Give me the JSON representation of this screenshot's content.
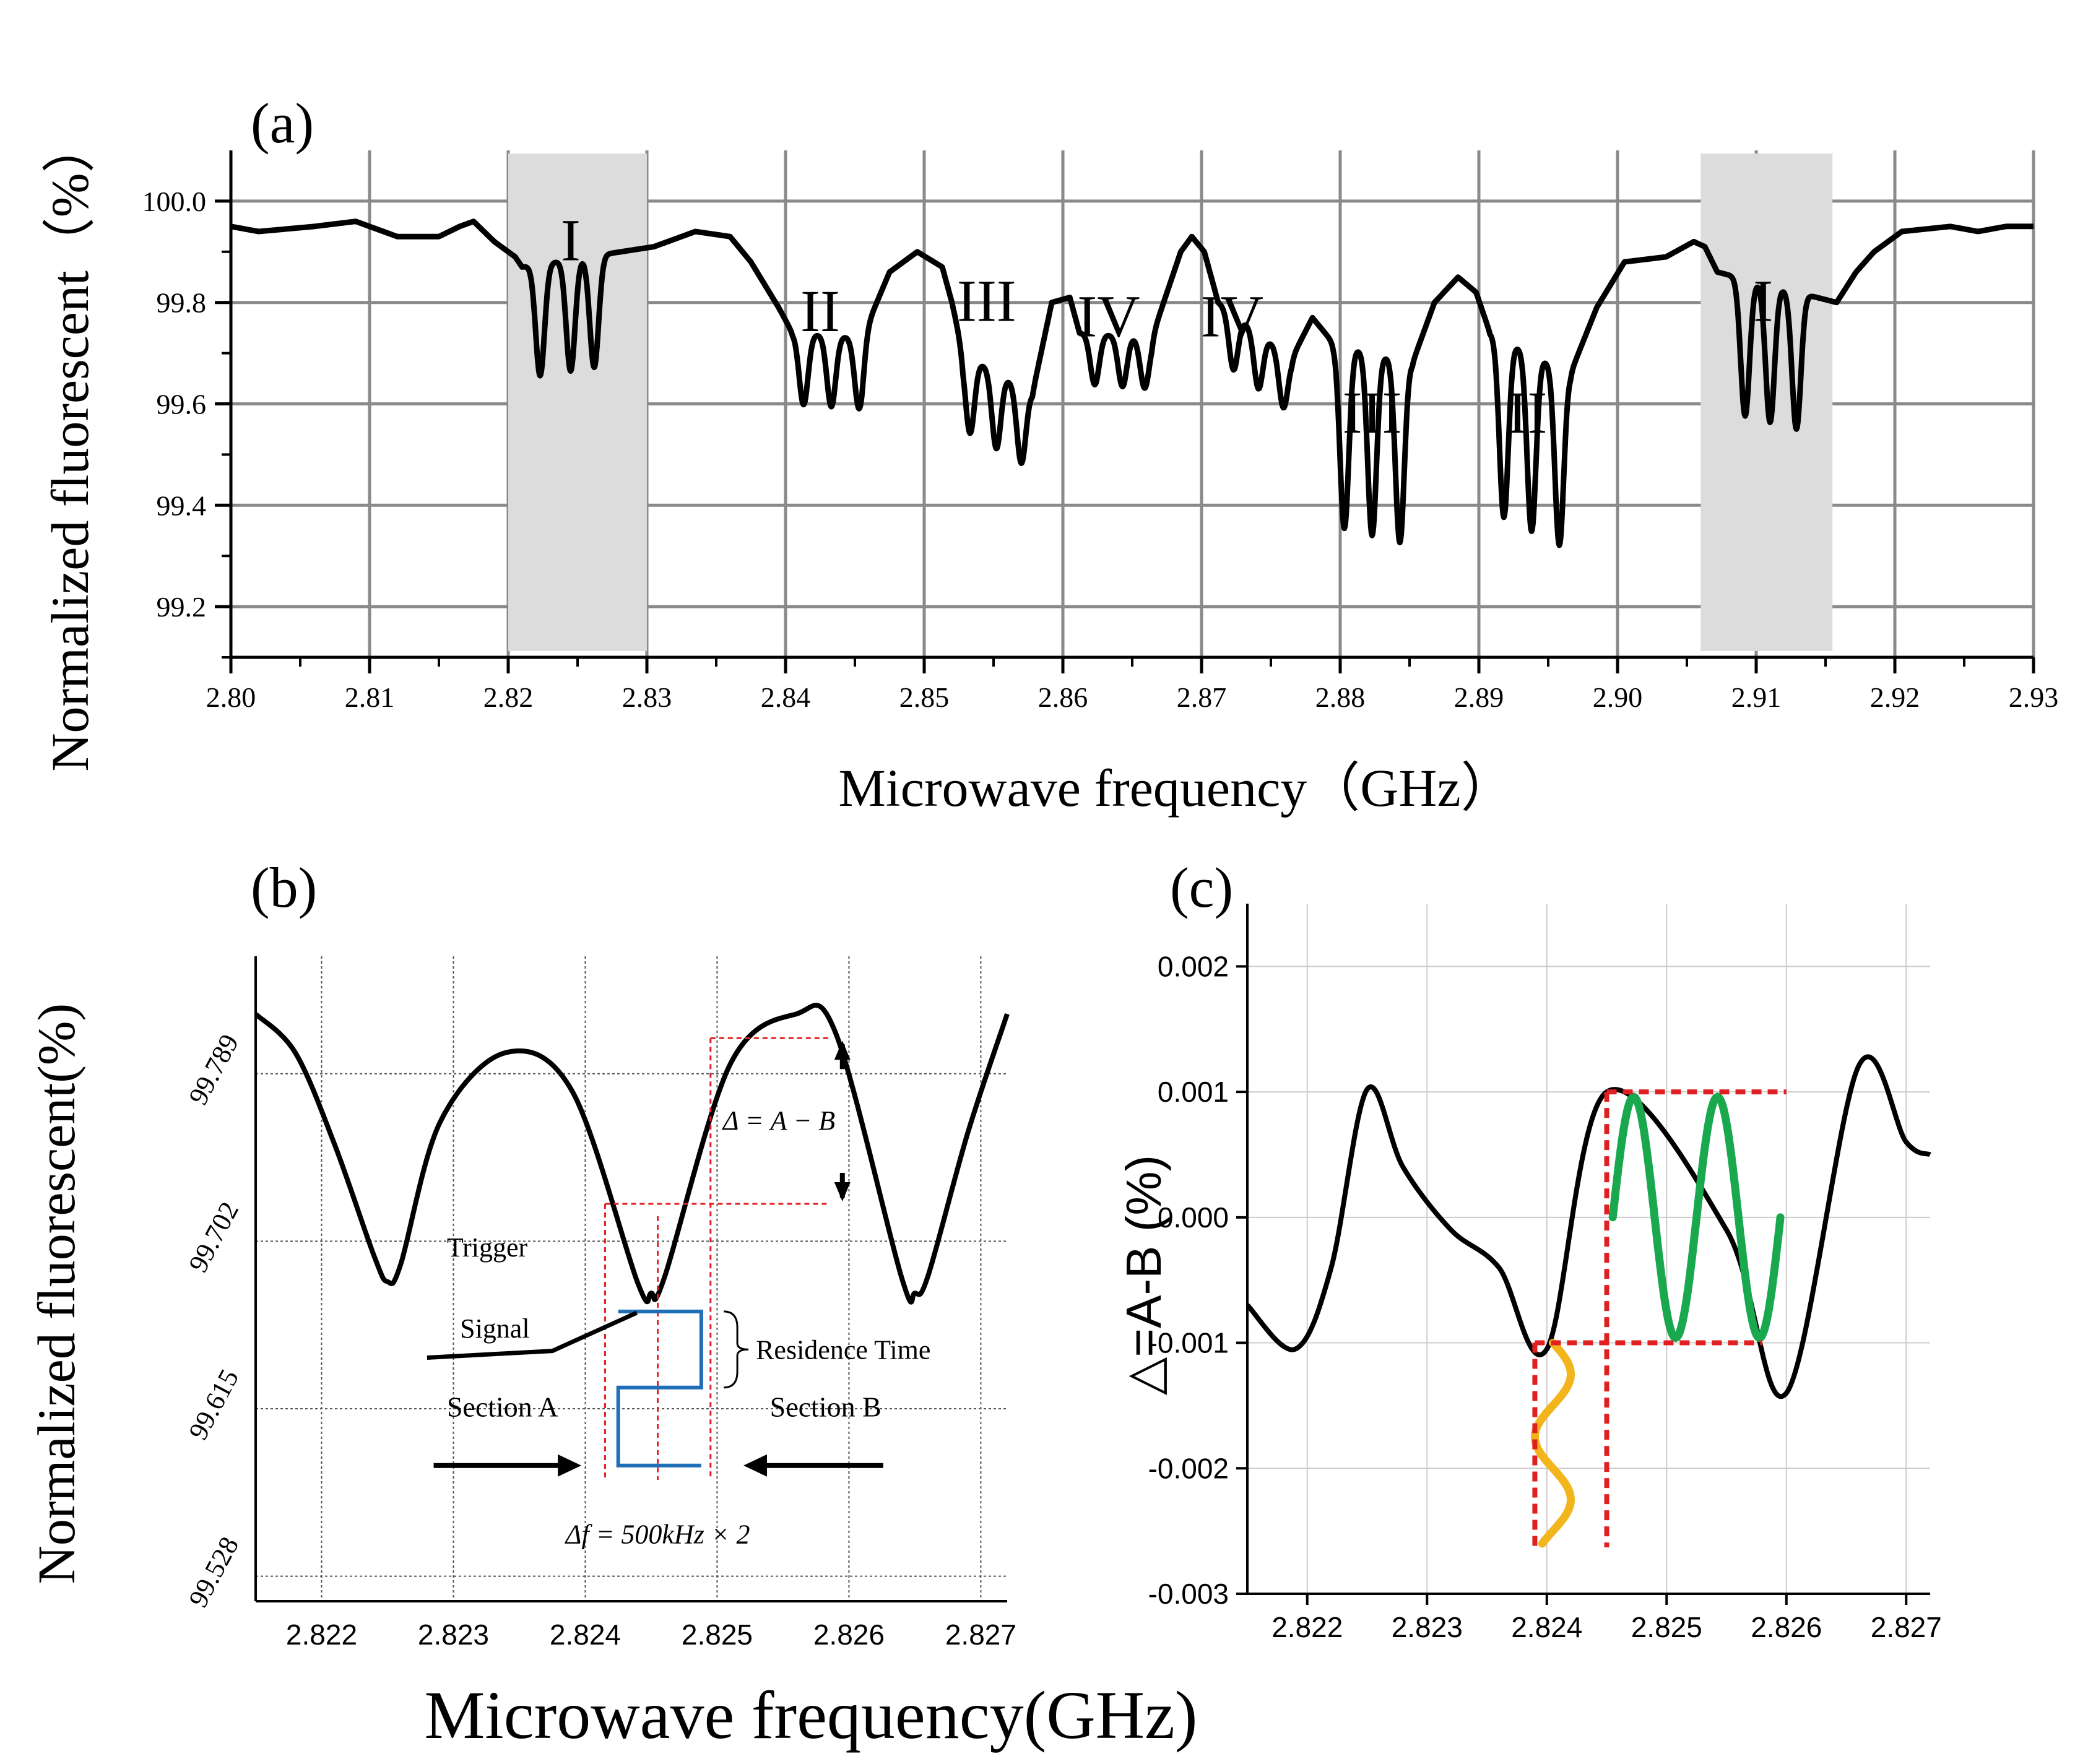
{
  "figure": {
    "panel_a_label": "(a)",
    "panel_b_label": "(b)",
    "panel_c_label": "(c)",
    "shared_xlabel": "Microwave frequency(GHz)"
  },
  "chart_data": [
    {
      "id": "a",
      "type": "line",
      "title": "(a)",
      "xlabel": "Microwave frequency（GHz）",
      "ylabel": "Normalized fluorescent（%）",
      "xlim": [
        2.8,
        2.93
      ],
      "ylim": [
        99.1,
        100.1
      ],
      "xticks": [
        "2.80",
        "2.81",
        "2.82",
        "2.83",
        "2.84",
        "2.85",
        "2.86",
        "2.87",
        "2.88",
        "2.89",
        "2.90",
        "2.91",
        "2.92",
        "2.93"
      ],
      "yticks": [
        "99.2",
        "99.4",
        "99.6",
        "99.8",
        "100.0"
      ],
      "grid": true,
      "shaded_regions": [
        {
          "x0": 2.82,
          "x1": 2.83,
          "label": "I"
        },
        {
          "x0": 2.906,
          "x1": 2.9155,
          "label": "I"
        }
      ],
      "annotations": [
        {
          "text": "I",
          "x": 2.8245,
          "y": 99.92
        },
        {
          "text": "II",
          "x": 2.8425,
          "y": 99.78
        },
        {
          "text": "III",
          "x": 2.8545,
          "y": 99.8
        },
        {
          "text": "IV",
          "x": 2.8633,
          "y": 99.77
        },
        {
          "text": "IV",
          "x": 2.8722,
          "y": 99.77
        },
        {
          "text": "III",
          "x": 2.8823,
          "y": 99.58
        },
        {
          "text": "II",
          "x": 2.8935,
          "y": 99.58
        },
        {
          "text": "I",
          "x": 2.9105,
          "y": 99.8
        }
      ],
      "baseline": [
        [
          2.8,
          99.95
        ],
        [
          2.802,
          99.94
        ],
        [
          2.806,
          99.95
        ],
        [
          2.809,
          99.96
        ],
        [
          2.812,
          99.93
        ],
        [
          2.815,
          99.93
        ],
        [
          2.8165,
          99.95
        ],
        [
          2.8175,
          99.96
        ],
        [
          2.819,
          99.92
        ],
        [
          2.8205,
          99.89
        ],
        [
          2.821,
          99.87
        ],
        [
          2.8305,
          99.91
        ],
        [
          2.8335,
          99.94
        ],
        [
          2.836,
          99.93
        ],
        [
          2.8375,
          99.88
        ],
        [
          2.8395,
          99.79
        ],
        [
          2.8405,
          99.74
        ],
        [
          2.8455,
          99.73
        ],
        [
          2.8475,
          99.86
        ],
        [
          2.8495,
          99.9
        ],
        [
          2.8513,
          99.87
        ],
        [
          2.852,
          99.8
        ],
        [
          2.8528,
          99.7
        ],
        [
          2.8578,
          99.62
        ],
        [
          2.8592,
          99.8
        ],
        [
          2.8605,
          99.81
        ],
        [
          2.8612,
          99.74
        ],
        [
          2.8664,
          99.73
        ],
        [
          2.8685,
          99.9
        ],
        [
          2.8693,
          99.93
        ],
        [
          2.8702,
          99.9
        ],
        [
          2.8712,
          99.8
        ],
        [
          2.8765,
          99.69
        ],
        [
          2.878,
          99.77
        ],
        [
          2.8795,
          99.72
        ],
        [
          2.8852,
          99.68
        ],
        [
          2.8868,
          99.8
        ],
        [
          2.8885,
          99.85
        ],
        [
          2.8898,
          99.82
        ],
        [
          2.8908,
          99.74
        ],
        [
          2.8966,
          99.66
        ],
        [
          2.8985,
          99.79
        ],
        [
          2.9005,
          99.88
        ],
        [
          2.9035,
          99.89
        ],
        [
          2.9055,
          99.92
        ],
        [
          2.9063,
          99.91
        ],
        [
          2.9072,
          99.86
        ],
        [
          2.9158,
          99.8
        ],
        [
          2.9172,
          99.86
        ],
        [
          2.9185,
          99.9
        ],
        [
          2.9205,
          99.94
        ],
        [
          2.924,
          99.95
        ],
        [
          2.926,
          99.94
        ],
        [
          2.928,
          99.95
        ],
        [
          2.93,
          99.95
        ]
      ],
      "dips": [
        {
          "x": 2.8223,
          "depth": 0.22,
          "w": 0.00045
        },
        {
          "x": 2.8245,
          "depth": 0.22,
          "w": 0.00045
        },
        {
          "x": 2.8262,
          "depth": 0.22,
          "w": 0.00045
        },
        {
          "x": 2.8413,
          "depth": 0.14,
          "w": 0.00045
        },
        {
          "x": 2.8433,
          "depth": 0.14,
          "w": 0.00045
        },
        {
          "x": 2.8453,
          "depth": 0.14,
          "w": 0.00045
        },
        {
          "x": 2.8533,
          "depth": 0.15,
          "w": 0.00045
        },
        {
          "x": 2.8552,
          "depth": 0.15,
          "w": 0.00045
        },
        {
          "x": 2.857,
          "depth": 0.15,
          "w": 0.00045
        },
        {
          "x": 2.8623,
          "depth": 0.1,
          "w": 0.00045
        },
        {
          "x": 2.8643,
          "depth": 0.1,
          "w": 0.00045
        },
        {
          "x": 2.8659,
          "depth": 0.1,
          "w": 0.00045
        },
        {
          "x": 2.8723,
          "depth": 0.11,
          "w": 0.00045
        },
        {
          "x": 2.8741,
          "depth": 0.11,
          "w": 0.00045
        },
        {
          "x": 2.8759,
          "depth": 0.11,
          "w": 0.00045
        },
        {
          "x": 2.8803,
          "depth": 0.36,
          "w": 0.00045
        },
        {
          "x": 2.8823,
          "depth": 0.36,
          "w": 0.00045
        },
        {
          "x": 2.8843,
          "depth": 0.36,
          "w": 0.00045
        },
        {
          "x": 2.8918,
          "depth": 0.35,
          "w": 0.00045
        },
        {
          "x": 2.8938,
          "depth": 0.35,
          "w": 0.00045
        },
        {
          "x": 2.8958,
          "depth": 0.35,
          "w": 0.00045
        },
        {
          "x": 2.9092,
          "depth": 0.27,
          "w": 0.00045
        },
        {
          "x": 2.911,
          "depth": 0.27,
          "w": 0.00045
        },
        {
          "x": 2.9129,
          "depth": 0.27,
          "w": 0.00045
        }
      ]
    },
    {
      "id": "b",
      "type": "line",
      "title": "(b)",
      "ylabel": "Normalized fluorescent(%)",
      "xlim": [
        2.8215,
        2.8272
      ],
      "ylim": [
        99.515,
        99.85
      ],
      "xticks": [
        "2.822",
        "2.823",
        "2.824",
        "2.825",
        "2.826",
        "2.827"
      ],
      "yticks": [
        "99.528",
        "99.615",
        "99.702",
        "99.789"
      ],
      "grid": true,
      "points": [
        [
          2.8215,
          99.82
        ],
        [
          2.8218,
          99.8
        ],
        [
          2.8221,
          99.752
        ],
        [
          2.8224,
          99.694
        ],
        [
          2.8225,
          99.681
        ],
        [
          2.8226,
          99.69
        ],
        [
          2.8229,
          99.764
        ],
        [
          2.8234,
          99.8
        ],
        [
          2.8239,
          99.78
        ],
        [
          2.8244,
          99.68
        ],
        [
          2.8245,
          99.675
        ],
        [
          2.8246,
          99.683
        ],
        [
          2.8251,
          99.794
        ],
        [
          2.8256,
          99.82
        ],
        [
          2.8259,
          99.81
        ],
        [
          2.8264,
          99.683
        ],
        [
          2.8265,
          99.675
        ],
        [
          2.8266,
          99.684
        ],
        [
          2.8269,
          99.758
        ],
        [
          2.8272,
          99.82
        ]
      ],
      "annotations": {
        "delta_label": "Δ = A − B",
        "trigger_label": "Trigger",
        "signal_label": "Signal",
        "residence_label": "Residence Time",
        "section_a": "Section A",
        "section_b": "Section B",
        "df_label": "Δf = 500kHz × 2"
      }
    },
    {
      "id": "c",
      "type": "line",
      "title": "(c)",
      "ylabel": "△=A-B (%)",
      "xlim": [
        2.8215,
        2.8272
      ],
      "ylim": [
        -0.003,
        0.0025
      ],
      "xticks": [
        "2.822",
        "2.823",
        "2.824",
        "2.825",
        "2.826",
        "2.827"
      ],
      "yticks": [
        "-0.003",
        "-0.002",
        "-0.001",
        "0.000",
        "0.001",
        "0.002"
      ],
      "grid": true,
      "points": [
        [
          2.8215,
          -0.0007
        ],
        [
          2.8219,
          -0.00105
        ],
        [
          2.8222,
          -0.0004
        ],
        [
          2.8225,
          0.00102
        ],
        [
          2.8228,
          0.0004
        ],
        [
          2.8232,
          -0.0001
        ],
        [
          2.8236,
          -0.0004
        ],
        [
          2.824,
          -0.00105
        ],
        [
          2.8245,
          0.001
        ],
        [
          2.8255,
          -0.0001
        ],
        [
          2.826,
          -0.0014
        ],
        [
          2.8266,
          0.0012
        ],
        [
          2.827,
          0.0006
        ],
        [
          2.8272,
          0.0005
        ]
      ],
      "series": [
        {
          "name": "green-sine",
          "color": "#1aa84e",
          "x0": 2.82455,
          "x1": 2.82595,
          "center": 0.0,
          "amp": 0.00096,
          "cycles": 2
        },
        {
          "name": "orange-sine",
          "color": "#f2b51b",
          "x0": 2.8239,
          "x1": 2.8242,
          "center": -0.0018,
          "amp": 0.0008,
          "cycles": 1.6
        }
      ]
    }
  ]
}
